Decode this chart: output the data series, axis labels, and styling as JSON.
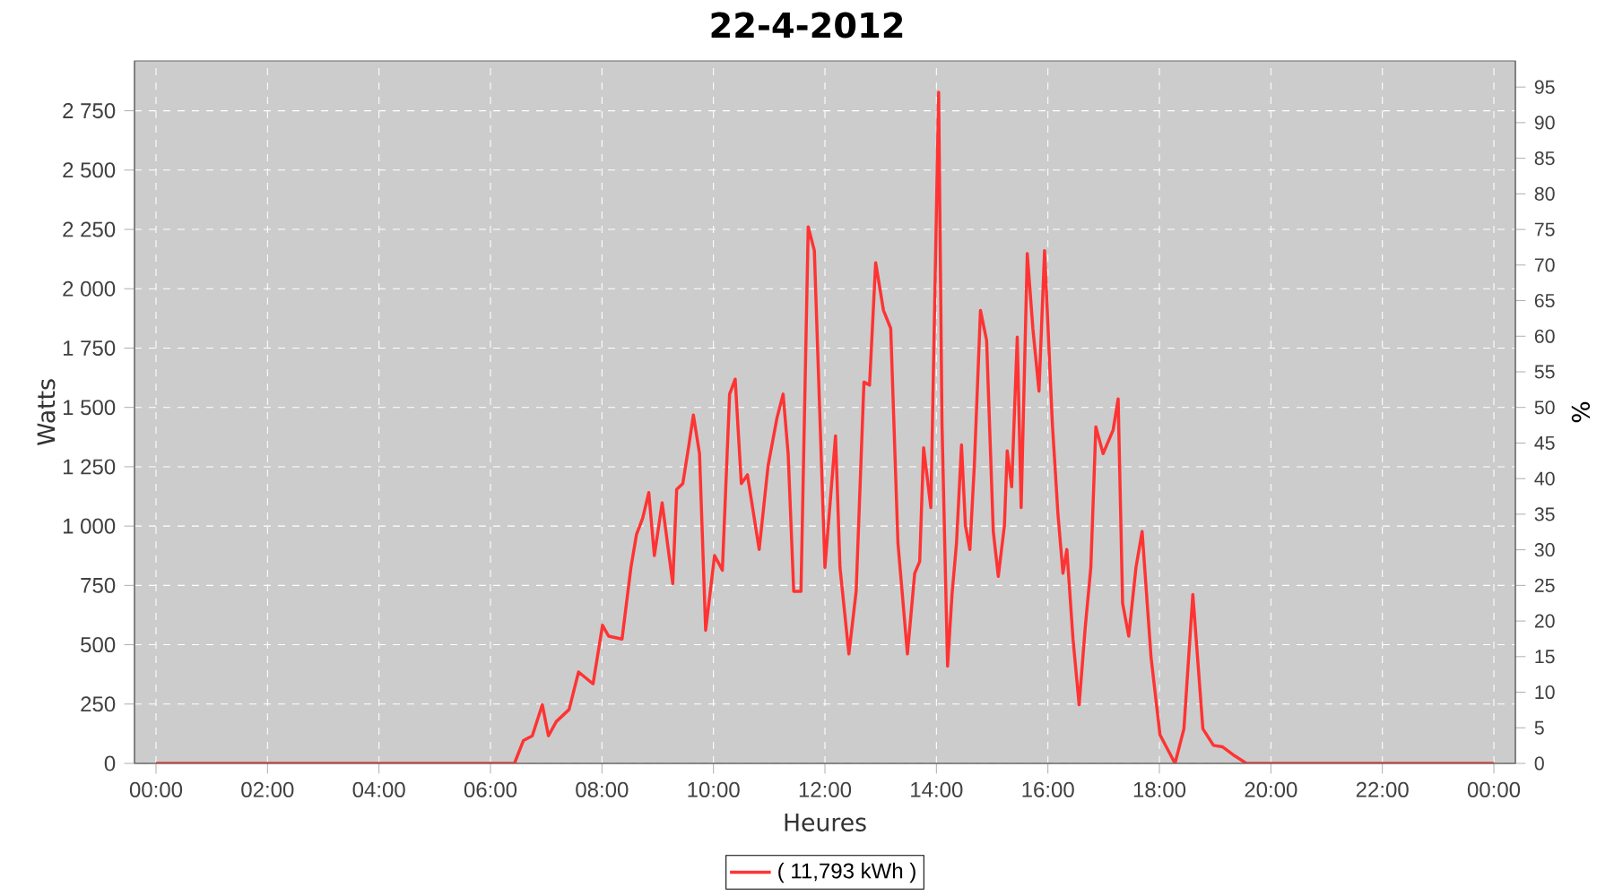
{
  "chart_data": {
    "type": "line",
    "title": "22-4-2012",
    "xlabel": "Heures",
    "ylabel": "Watts",
    "y2label": "%",
    "x": [
      0,
      6.3,
      6.43,
      6.59,
      6.75,
      6.93,
      7.04,
      7.18,
      7.41,
      7.58,
      7.84,
      8.01,
      8.12,
      8.36,
      8.52,
      8.62,
      8.73,
      8.84,
      8.94,
      9.08,
      9.27,
      9.34,
      9.45,
      9.56,
      9.64,
      9.75,
      9.86,
      10.02,
      10.16,
      10.29,
      10.39,
      10.5,
      10.61,
      10.82,
      10.98,
      11.14,
      11.25,
      11.34,
      11.44,
      11.57,
      11.7,
      11.81,
      12.0,
      12.19,
      12.27,
      12.43,
      12.56,
      12.7,
      12.8,
      12.91,
      13.05,
      13.18,
      13.31,
      13.48,
      13.61,
      13.7,
      13.77,
      13.9,
      14.04,
      14.1,
      14.2,
      14.28,
      14.36,
      14.45,
      14.52,
      14.6,
      14.68,
      14.79,
      14.9,
      15.02,
      15.11,
      15.22,
      15.27,
      15.35,
      15.45,
      15.52,
      15.63,
      15.73,
      15.84,
      15.94,
      16.08,
      16.18,
      16.27,
      16.34,
      16.45,
      16.56,
      16.67,
      16.77,
      16.86,
      16.99,
      17.17,
      17.26,
      17.34,
      17.45,
      17.58,
      17.69,
      17.85,
      18.01,
      18.28,
      18.44,
      18.6,
      18.78,
      18.97,
      19.13,
      19.35,
      19.56,
      24
    ],
    "series": [
      {
        "name": "( 11,793 kWh )",
        "color": "#ff3333",
        "values": [
          0,
          0,
          0,
          96,
          116,
          247,
          116,
          176,
          227,
          385,
          335,
          582,
          536,
          524,
          826,
          965,
          1033,
          1141,
          876,
          1098,
          758,
          1154,
          1179,
          1342,
          1468,
          1305,
          561,
          876,
          814,
          1556,
          1619,
          1179,
          1216,
          901,
          1254,
          1456,
          1556,
          1305,
          725,
          725,
          2261,
          2161,
          826,
          1380,
          826,
          461,
          725,
          1607,
          1594,
          2110,
          1909,
          1833,
          927,
          461,
          801,
          851,
          1330,
          1078,
          2828,
          1430,
          410,
          712,
          927,
          1342,
          1003,
          901,
          1254,
          1909,
          1783,
          977,
          788,
          1003,
          1317,
          1166,
          1796,
          1078,
          2148,
          1833,
          1569,
          2161,
          1430,
          1052,
          801,
          901,
          524,
          247,
          574,
          826,
          1418,
          1305,
          1405,
          1536,
          675,
          536,
          826,
          977,
          448,
          121,
          0,
          146,
          712,
          146,
          76,
          70,
          32,
          0,
          0
        ]
      }
    ],
    "xlim": [
      -0.386,
      24.386
    ],
    "xticks": [
      {
        "value": 0,
        "label": "00:00"
      },
      {
        "value": 2,
        "label": "02:00"
      },
      {
        "value": 4,
        "label": "04:00"
      },
      {
        "value": 6,
        "label": "06:00"
      },
      {
        "value": 8,
        "label": "08:00"
      },
      {
        "value": 10,
        "label": "10:00"
      },
      {
        "value": 12,
        "label": "12:00"
      },
      {
        "value": 14,
        "label": "14:00"
      },
      {
        "value": 16,
        "label": "16:00"
      },
      {
        "value": 18,
        "label": "18:00"
      },
      {
        "value": 20,
        "label": "20:00"
      },
      {
        "value": 22,
        "label": "22:00"
      },
      {
        "value": 24,
        "label": "00:00"
      }
    ],
    "ylim": [
      0,
      2960
    ],
    "yticks": [
      0,
      250,
      500,
      750,
      {
        "value": 1000,
        "label": "1 000"
      },
      {
        "value": 1250,
        "label": "1 250"
      },
      {
        "value": 1500,
        "label": "1 500"
      },
      {
        "value": 1750,
        "label": "1 750"
      },
      {
        "value": 2000,
        "label": "2 000"
      },
      {
        "value": 2250,
        "label": "2 250"
      },
      {
        "value": 2500,
        "label": "2 500"
      },
      {
        "value": 2750,
        "label": "2 750"
      }
    ],
    "y2lim": [
      0,
      98.67
    ],
    "y2ticks": [
      0,
      5,
      10,
      15,
      20,
      25,
      30,
      35,
      40,
      45,
      50,
      55,
      60,
      65,
      70,
      75,
      80,
      85,
      90,
      95
    ],
    "grid": true,
    "legend": "bottom",
    "marker": "none",
    "line_style": "solid"
  }
}
